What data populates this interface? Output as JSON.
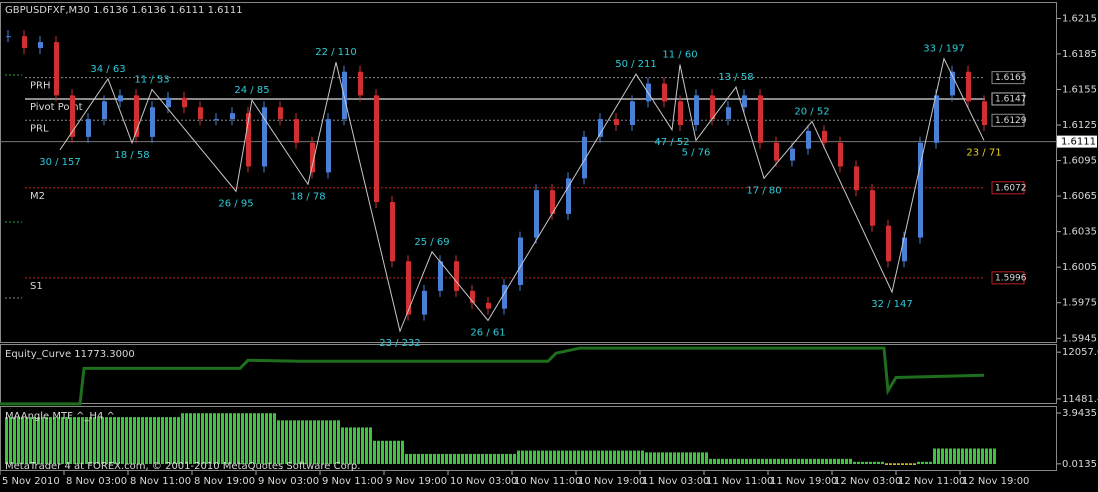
{
  "chart_data": [
    {
      "type": "ohlc",
      "title": "GBPUSDFXF,M30  1.6136 1.6136 1.6111 1.6111",
      "xlim": [
        0,
        264
      ],
      "ylim": [
        1.5941,
        1.6228
      ],
      "yticks": [
        1.6215,
        1.6185,
        1.6155,
        1.6125,
        1.6095,
        1.6065,
        1.6035,
        1.6005,
        1.5975,
        1.5945
      ],
      "xticks": [
        {
          "value": 0,
          "label": "5 Nov 2010"
        },
        {
          "value": 16,
          "label": "8 Nov 03:00"
        },
        {
          "value": 32,
          "label": "8 Nov 11:00"
        },
        {
          "value": 48,
          "label": "8 Nov 19:00"
        },
        {
          "value": 64,
          "label": "9 Nov 03:00"
        },
        {
          "value": 80,
          "label": "9 Nov 11:00"
        },
        {
          "value": 96,
          "label": "9 Nov 19:00"
        },
        {
          "value": 112,
          "label": "10 Nov 03:00"
        },
        {
          "value": 128,
          "label": "10 Nov 11:00"
        },
        {
          "value": 144,
          "label": "10 Nov 19:00"
        },
        {
          "value": 160,
          "label": "11 Nov 03:00"
        },
        {
          "value": 176,
          "label": "11 Nov 11:00"
        },
        {
          "value": 192,
          "label": "11 Nov 19:00"
        },
        {
          "value": 208,
          "label": "12 Nov 03:00"
        },
        {
          "value": 224,
          "label": "12 Nov 11:00"
        },
        {
          "value": 240,
          "label": "12 Nov 19:00"
        }
      ],
      "last": 1.6111,
      "up_color": "#4a7fd6",
      "down_color": "#d03030",
      "x": [
        0,
        4,
        8,
        12,
        16,
        20,
        24,
        28,
        32,
        36,
        40,
        44,
        48,
        52,
        56,
        60,
        64,
        68,
        72,
        76,
        80,
        84,
        88,
        92,
        96,
        100,
        104,
        108,
        112,
        116,
        120,
        124,
        128,
        132,
        136,
        140,
        144,
        148,
        152,
        156,
        160,
        164,
        168,
        172,
        176,
        180,
        184,
        188,
        192,
        196,
        200,
        204,
        208,
        212,
        216,
        220,
        224,
        228,
        232,
        236,
        240,
        244
      ],
      "values": [
        1.62,
        1.619,
        1.6195,
        1.615,
        1.6115,
        1.613,
        1.6145,
        1.615,
        1.6115,
        1.614,
        1.6148,
        1.614,
        1.613,
        1.613,
        1.6135,
        1.609,
        1.614,
        1.613,
        1.611,
        1.6085,
        1.613,
        1.617,
        1.615,
        1.606,
        1.601,
        1.5965,
        1.5985,
        1.601,
        1.5985,
        1.5975,
        1.597,
        1.599,
        1.603,
        1.607,
        1.605,
        1.608,
        1.6115,
        1.613,
        1.6125,
        1.6145,
        1.616,
        1.6145,
        1.6125,
        1.615,
        1.613,
        1.614,
        1.615,
        1.611,
        1.6095,
        1.6105,
        1.612,
        1.611,
        1.609,
        1.607,
        1.604,
        1.601,
        1.603,
        1.611,
        1.615,
        1.617,
        1.6145,
        1.6125
      ],
      "zigzag": {
        "color": "#c8c8c8",
        "label_color": "#2ccbd8",
        "last_label_color": "#e8d020",
        "x": [
          15,
          27,
          33,
          38,
          59,
          63,
          77,
          84,
          100,
          108,
          122,
          159,
          168,
          170,
          174,
          184,
          191,
          203,
          223,
          236,
          246
        ],
        "values": [
          1.6104,
          1.6164,
          1.611,
          1.6155,
          1.6069,
          1.6146,
          1.6075,
          1.6178,
          1.5951,
          1.6018,
          1.596,
          1.6168,
          1.6121,
          1.6176,
          1.6112,
          1.6157,
          1.608,
          1.6128,
          1.5984,
          1.6181,
          1.6112
        ],
        "labels": [
          "30 / 157",
          "34 / 63",
          "18 / 58",
          "11 / 53",
          "26 / 95",
          "24 / 85",
          "18 / 78",
          "22 / 110",
          "23 / 232",
          "25 / 69",
          "26 / 61",
          "50 / 211",
          "47 / 52",
          "11 / 60",
          "5 / 76",
          "13 / 58",
          "17 / 80",
          "20 / 52",
          "32 / 147",
          "33 / 197",
          "23 / 71"
        ]
      },
      "levels": [
        {
          "label": "PRH",
          "value": 1.6165,
          "color": "#8a8a8a",
          "dash": true
        },
        {
          "label": "Pivot Point",
          "value": 1.6147,
          "color": "#b8b8b8",
          "dash": false
        },
        {
          "label": "PRL",
          "value": 1.6129,
          "color": "#8a8a8a",
          "dash": true
        },
        {
          "label": "M2",
          "value": 1.6072,
          "color": "#c02020",
          "dash": true
        },
        {
          "label": "S1",
          "value": 1.5996,
          "color": "#c02020",
          "dash": true
        }
      ]
    },
    {
      "type": "line",
      "title": "Equity_Curve 11773.3000",
      "xlim": [
        0,
        264
      ],
      "ylim": [
        11419,
        12145
      ],
      "yticks": [
        12057.06,
        11481.43
      ],
      "color": "#1e6e1e",
      "x": [
        0,
        20,
        21,
        60,
        62,
        75,
        137,
        139,
        145,
        221,
        222,
        224,
        246
      ],
      "values": [
        11420,
        11420,
        11857,
        11857,
        11957,
        11945,
        11945,
        12044,
        12107,
        12107,
        11582,
        11745,
        11773.3
      ]
    },
    {
      "type": "bar",
      "title": "MAAngle MTF ^_H4 ^",
      "footer": "MetaTrader 4 at FOREX.com, © 2001-2010 MetaQuotes Software Corp.",
      "xlim": [
        0,
        264
      ],
      "ylim": [
        -0.54,
        4.41
      ],
      "yticks": [
        3.9435,
        0.0135
      ],
      "x": [
        0,
        4,
        8,
        12,
        16,
        20,
        24,
        28,
        32,
        36,
        40,
        44,
        48,
        52,
        56,
        60,
        64,
        68,
        72,
        76,
        80,
        84,
        88,
        92,
        96,
        100,
        104,
        108,
        112,
        116,
        120,
        124,
        128,
        132,
        136,
        140,
        144,
        148,
        152,
        156,
        160,
        164,
        168,
        172,
        176,
        180,
        184,
        188,
        192,
        196,
        200,
        204,
        208,
        212,
        216,
        220,
        224,
        228,
        232,
        236,
        240,
        244
      ],
      "series": [
        {
          "color": "#3ec43e",
          "values": [
            3.63,
            3.63,
            3.63,
            3.63,
            3.63,
            3.63,
            3.63,
            3.63,
            3.63,
            3.63,
            3.63,
            3.93,
            3.93,
            3.93,
            3.93,
            3.93,
            3.93,
            3.38,
            3.38,
            3.38,
            3.38,
            2.83,
            2.83,
            1.8,
            1.8,
            0.78,
            0.78,
            0.78,
            0.78,
            0.78,
            0.78,
            0.78,
            1.04,
            1.04,
            1.04,
            1.04,
            1.04,
            1.04,
            1.04,
            1.04,
            0.9,
            0.9,
            0.9,
            0.9,
            0.4,
            0.4,
            0.4,
            0.4,
            0.4,
            0.4,
            0.4,
            0.4,
            0.4,
            0.17,
            0.17,
            null,
            null,
            0.17,
            1.2,
            1.2,
            1.2,
            1.2
          ]
        },
        {
          "color": "#e8d020",
          "values": [
            null,
            null,
            null,
            null,
            null,
            null,
            null,
            null,
            null,
            null,
            null,
            null,
            null,
            null,
            null,
            null,
            null,
            null,
            null,
            null,
            null,
            null,
            null,
            null,
            null,
            null,
            null,
            null,
            null,
            null,
            null,
            null,
            null,
            null,
            null,
            null,
            null,
            null,
            null,
            null,
            null,
            null,
            null,
            null,
            null,
            null,
            null,
            null,
            null,
            null,
            null,
            null,
            null,
            null,
            null,
            0.05,
            0.05,
            null,
            null,
            null,
            null,
            null
          ]
        }
      ]
    }
  ]
}
